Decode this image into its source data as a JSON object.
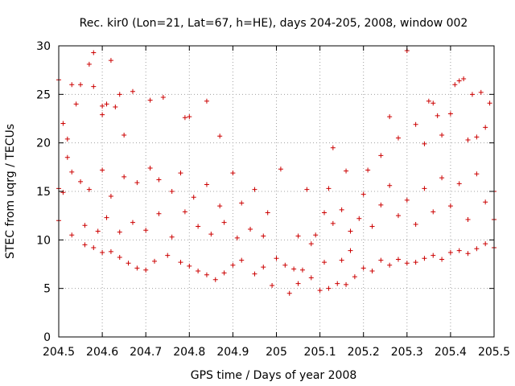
{
  "chart_data": {
    "type": "scatter",
    "title": "Rec. kir0 (Lon=21, Lat=67, h=HE), days 204-205, 2008, window 002",
    "xlabel": "GPS time / Days of year 2008",
    "ylabel": "STEC from uqrg / TECUs",
    "xlim": [
      204.5,
      205.5
    ],
    "ylim": [
      0,
      30
    ],
    "x_ticks": [
      "204.5",
      "204.6",
      "204.7",
      "204.8",
      "204.9",
      "205",
      "205.1",
      "205.2",
      "205.3",
      "205.4",
      "205.5"
    ],
    "y_ticks": [
      "0",
      "5",
      "10",
      "15",
      "20",
      "25",
      "30"
    ],
    "grid": true,
    "marker": "plus",
    "color": "#cc0000",
    "series": [
      {
        "name": "STEC",
        "points": [
          [
            204.5,
            26.5
          ],
          [
            204.51,
            22.0
          ],
          [
            204.52,
            20.4
          ],
          [
            204.52,
            18.5
          ],
          [
            204.53,
            26.0
          ],
          [
            204.54,
            24.0
          ],
          [
            204.55,
            26.0
          ],
          [
            204.57,
            28.1
          ],
          [
            204.58,
            29.3
          ],
          [
            204.58,
            25.8
          ],
          [
            204.6,
            23.8
          ],
          [
            204.6,
            22.9
          ],
          [
            204.61,
            24.0
          ],
          [
            204.62,
            28.5
          ],
          [
            204.63,
            23.7
          ],
          [
            204.64,
            25.0
          ],
          [
            204.65,
            20.8
          ],
          [
            204.67,
            25.3
          ],
          [
            204.71,
            24.4
          ],
          [
            204.74,
            24.7
          ],
          [
            204.79,
            22.6
          ],
          [
            204.8,
            22.7
          ],
          [
            204.84,
            24.3
          ],
          [
            204.87,
            20.7
          ],
          [
            204.5,
            15.3
          ],
          [
            204.51,
            14.9
          ],
          [
            204.53,
            17.0
          ],
          [
            204.55,
            16.0
          ],
          [
            204.57,
            15.2
          ],
          [
            204.6,
            17.2
          ],
          [
            204.62,
            14.5
          ],
          [
            204.65,
            16.5
          ],
          [
            204.68,
            15.9
          ],
          [
            204.71,
            17.4
          ],
          [
            204.73,
            16.2
          ],
          [
            204.76,
            15.0
          ],
          [
            204.78,
            16.9
          ],
          [
            204.81,
            14.4
          ],
          [
            204.84,
            15.7
          ],
          [
            204.87,
            13.5
          ],
          [
            204.9,
            16.9
          ],
          [
            204.92,
            13.8
          ],
          [
            204.95,
            15.2
          ],
          [
            204.98,
            12.8
          ],
          [
            204.5,
            12.0
          ],
          [
            204.53,
            10.5
          ],
          [
            204.56,
            11.5
          ],
          [
            204.59,
            10.9
          ],
          [
            204.61,
            12.3
          ],
          [
            204.64,
            10.8
          ],
          [
            204.67,
            11.8
          ],
          [
            204.7,
            11.0
          ],
          [
            204.73,
            12.7
          ],
          [
            204.76,
            10.3
          ],
          [
            204.79,
            12.9
          ],
          [
            204.82,
            11.4
          ],
          [
            204.85,
            10.6
          ],
          [
            204.88,
            11.8
          ],
          [
            204.91,
            10.2
          ],
          [
            204.94,
            11.1
          ],
          [
            204.97,
            10.4
          ],
          [
            204.56,
            9.5
          ],
          [
            204.58,
            9.2
          ],
          [
            204.6,
            8.7
          ],
          [
            204.62,
            8.8
          ],
          [
            204.64,
            8.2
          ],
          [
            204.66,
            7.6
          ],
          [
            204.68,
            7.1
          ],
          [
            204.7,
            6.9
          ],
          [
            204.72,
            7.8
          ],
          [
            204.75,
            8.4
          ],
          [
            204.78,
            7.7
          ],
          [
            204.8,
            7.3
          ],
          [
            204.82,
            6.8
          ],
          [
            204.84,
            6.4
          ],
          [
            204.86,
            5.9
          ],
          [
            204.88,
            6.6
          ],
          [
            204.9,
            7.4
          ],
          [
            204.92,
            7.9
          ],
          [
            204.95,
            6.5
          ],
          [
            204.97,
            7.2
          ],
          [
            204.99,
            5.3
          ],
          [
            205.0,
            8.1
          ],
          [
            205.01,
            17.3
          ],
          [
            205.02,
            7.4
          ],
          [
            205.03,
            4.5
          ],
          [
            205.04,
            7.0
          ],
          [
            205.05,
            5.5
          ],
          [
            205.06,
            6.9
          ],
          [
            205.07,
            15.2
          ],
          [
            205.08,
            6.1
          ],
          [
            205.09,
            10.5
          ],
          [
            205.1,
            4.8
          ],
          [
            205.11,
            7.7
          ],
          [
            205.12,
            5.0
          ],
          [
            205.13,
            19.5
          ],
          [
            205.14,
            5.5
          ],
          [
            205.15,
            7.9
          ],
          [
            205.16,
            5.4
          ],
          [
            205.17,
            8.9
          ],
          [
            205.18,
            6.2
          ],
          [
            205.2,
            7.1
          ],
          [
            205.22,
            6.8
          ],
          [
            205.24,
            7.9
          ],
          [
            205.26,
            7.4
          ],
          [
            205.28,
            8.0
          ],
          [
            205.3,
            7.6
          ],
          [
            205.32,
            7.7
          ],
          [
            205.34,
            8.1
          ],
          [
            205.36,
            8.4
          ],
          [
            205.38,
            8.0
          ],
          [
            205.4,
            8.7
          ],
          [
            205.42,
            8.9
          ],
          [
            205.44,
            8.6
          ],
          [
            205.46,
            9.1
          ],
          [
            205.48,
            9.6
          ],
          [
            205.5,
            9.2
          ],
          [
            205.05,
            10.4
          ],
          [
            205.08,
            9.6
          ],
          [
            205.11,
            12.8
          ],
          [
            205.13,
            11.7
          ],
          [
            205.15,
            13.1
          ],
          [
            205.17,
            10.9
          ],
          [
            205.19,
            12.2
          ],
          [
            205.2,
            14.7
          ],
          [
            205.22,
            11.4
          ],
          [
            205.24,
            13.6
          ],
          [
            205.26,
            15.6
          ],
          [
            205.28,
            12.5
          ],
          [
            205.3,
            14.1
          ],
          [
            205.32,
            11.6
          ],
          [
            205.34,
            15.3
          ],
          [
            205.36,
            12.9
          ],
          [
            205.38,
            16.4
          ],
          [
            205.4,
            13.5
          ],
          [
            205.42,
            15.8
          ],
          [
            205.44,
            12.1
          ],
          [
            205.46,
            16.8
          ],
          [
            205.48,
            13.9
          ],
          [
            205.5,
            12.1
          ],
          [
            205.12,
            15.3
          ],
          [
            205.16,
            17.1
          ],
          [
            205.21,
            17.2
          ],
          [
            205.24,
            18.7
          ],
          [
            205.26,
            22.7
          ],
          [
            205.28,
            20.5
          ],
          [
            205.3,
            29.5
          ],
          [
            205.32,
            21.9
          ],
          [
            205.34,
            19.9
          ],
          [
            205.35,
            24.3
          ],
          [
            205.36,
            24.1
          ],
          [
            205.37,
            22.8
          ],
          [
            205.38,
            20.8
          ],
          [
            205.4,
            23.0
          ],
          [
            205.41,
            26.0
          ],
          [
            205.42,
            26.4
          ],
          [
            205.43,
            26.6
          ],
          [
            205.44,
            20.3
          ],
          [
            205.45,
            25.0
          ],
          [
            205.46,
            20.6
          ],
          [
            205.47,
            25.2
          ],
          [
            205.48,
            21.6
          ],
          [
            205.49,
            24.1
          ],
          [
            205.5,
            15.0
          ]
        ]
      }
    ]
  }
}
